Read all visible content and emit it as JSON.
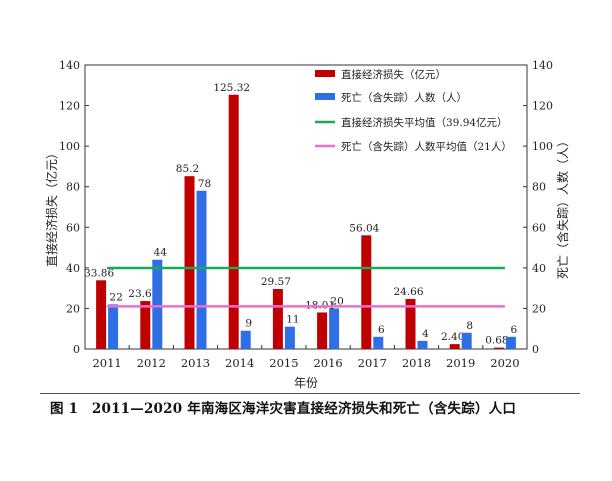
{
  "chart_data": {
    "type": "bar",
    "categories": [
      "2011",
      "2012",
      "2013",
      "2014",
      "2015",
      "2016",
      "2017",
      "2018",
      "2019",
      "2020"
    ],
    "series": [
      {
        "name": "直接经济损失（亿元）",
        "axis": "left",
        "color": "#c00000",
        "values": [
          33.86,
          23.63,
          85.2,
          125.32,
          29.57,
          18.01,
          56.04,
          24.66,
          2.4,
          0.68
        ],
        "labels": [
          "33.86",
          "23.63",
          "85.2",
          "125.32",
          "29.57",
          "18.01",
          "56.04",
          "24.66",
          "2.40",
          "0.68"
        ]
      },
      {
        "name": "死亡（含失踪）人数（人）",
        "axis": "right",
        "color": "#2f6fe6",
        "values": [
          22,
          44,
          78,
          9,
          11,
          20,
          6,
          4,
          8,
          6
        ],
        "labels": [
          "22",
          "44",
          "78",
          "9",
          "11",
          "20",
          "6",
          "4",
          "8",
          "6"
        ]
      }
    ],
    "lines": [
      {
        "name": "直接经济损失平均值（39.94亿元）",
        "value": 39.94,
        "color": "#1aaa55"
      },
      {
        "name": "死亡（含失踪）人数平均值（21人）",
        "value": 21,
        "color": "#ee6fcc"
      }
    ],
    "xlabel": "年份",
    "ylabel": "直接经济损失（亿元）",
    "y2label": "死亡（含失踪）人数（人）",
    "ylim": [
      0,
      140
    ],
    "y2lim": [
      0,
      140
    ],
    "yticks": [
      "0",
      "20",
      "40",
      "60",
      "80",
      "100",
      "120",
      "140"
    ],
    "grid": false,
    "legend": "top-right"
  },
  "caption": "图 1　2011—2020 年南海区海洋灾害直接经济损失和死亡（含失踪）人口"
}
